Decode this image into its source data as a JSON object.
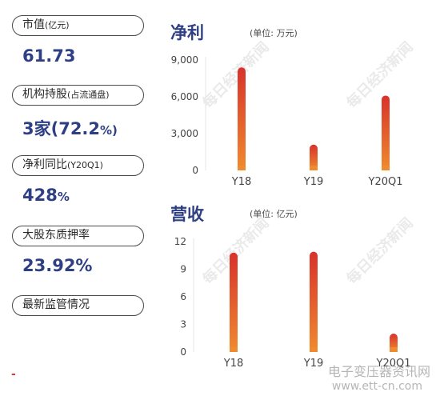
{
  "left_panel": {
    "items": [
      {
        "label_main": "市值",
        "label_small": "(亿元)",
        "value_main": "61.73",
        "value_unit": ""
      },
      {
        "label_main": "机构持股",
        "label_small": "(占流通盘)",
        "value_main": "3家(72.2",
        "value_unit": "%)"
      },
      {
        "label_main": "净利同比",
        "label_small": "(Y20Q1)",
        "value_main": "428",
        "value_unit": "%"
      },
      {
        "label_main": "大股东质押率",
        "label_small": "",
        "value_main": "23.92%",
        "value_unit": ""
      },
      {
        "label_main": "最新监管情况",
        "label_small": "",
        "value_main": "",
        "value_unit": ""
      }
    ],
    "footer_mark": "-"
  },
  "watermark_text": "每日经济新闻",
  "site_watermark": {
    "name": "电子变压器资讯网",
    "url": "www.ett-cn.com"
  },
  "chart_data": [
    {
      "type": "bar",
      "title": "净利",
      "unit": "(单位: 万元)",
      "categories": [
        "Y18",
        "Y19",
        "Y20Q1"
      ],
      "values": [
        8400,
        2100,
        6100
      ],
      "ylim": [
        0,
        9000
      ],
      "yticks": [
        0,
        3000,
        6000,
        9000
      ],
      "ytick_labels": [
        "0",
        "3,000",
        "6,000",
        "9,000"
      ],
      "grid": false,
      "colors": {
        "top": "#d8322c",
        "bottom": "#f08a2e"
      }
    },
    {
      "type": "bar",
      "title": "营收",
      "unit": "(单位: 亿元)",
      "categories": [
        "Y18",
        "Y19",
        "Y20Q1"
      ],
      "values": [
        10.8,
        10.9,
        2.0
      ],
      "ylim": [
        0,
        12
      ],
      "yticks": [
        0,
        3,
        6,
        9,
        12
      ],
      "ytick_labels": [
        "0",
        "3",
        "6",
        "9",
        "12"
      ],
      "grid": false,
      "colors": {
        "top": "#d8322c",
        "bottom": "#f08a2e"
      }
    }
  ]
}
